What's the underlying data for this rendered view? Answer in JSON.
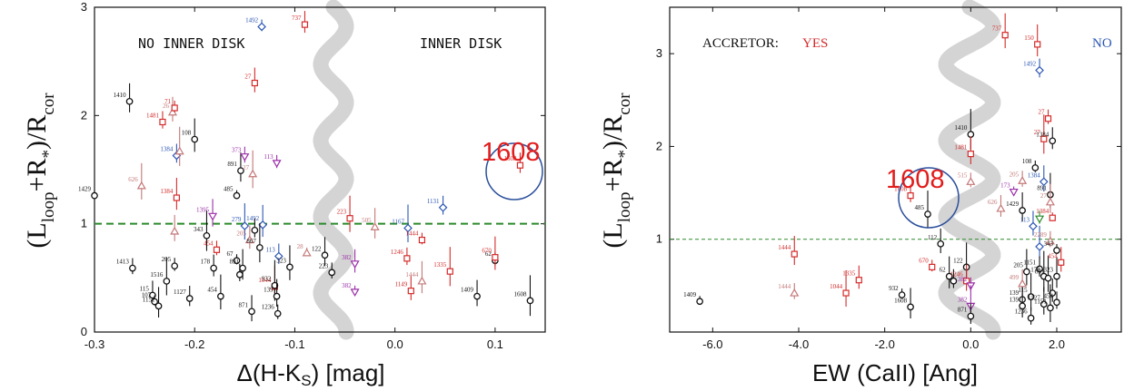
{
  "colors": {
    "black": "#111111",
    "red": "#d42a2a",
    "blue": "#2d57b4",
    "purple": "#9b2fa8",
    "salmon": "#c47878",
    "gray_band": "#d4d4d4",
    "green_line": "#2b8a2b",
    "highlight": "#e21c1c",
    "circle": "#2a4f9c"
  },
  "chart_data": [
    {
      "type": "scatter",
      "xlabel": "Δ(H-Ks) [mag]",
      "ylabel": "(Lloop+R*)/Rcor",
      "xlim": [
        -0.3,
        0.15
      ],
      "ylim": [
        0,
        3
      ],
      "xticks": [
        "-0.3",
        "-0.2",
        "-0.1",
        "0.0",
        "0.1"
      ],
      "yticks": [
        "0",
        "1",
        "2",
        "3"
      ],
      "reference_line_y": 1.0,
      "annotations": [
        "NO INNER DISK",
        "INNER DISK"
      ],
      "highlight": {
        "label": "1608",
        "x": 0.125,
        "y": 1.54
      },
      "points": [
        {
          "x": -0.3,
          "y": 1.26,
          "label": "1429",
          "c": "black",
          "m": "o"
        },
        {
          "x": -0.265,
          "y": 2.13,
          "label": "1410",
          "c": "black",
          "m": "o"
        },
        {
          "x": -0.262,
          "y": 0.59,
          "label": "1413",
          "c": "black",
          "m": "o"
        },
        {
          "x": -0.253,
          "y": 1.35,
          "label": "626",
          "c": "salmon",
          "m": "^"
        },
        {
          "x": -0.242,
          "y": 0.34,
          "label": "115",
          "c": "black",
          "m": "o"
        },
        {
          "x": -0.24,
          "y": 0.28,
          "label": "107",
          "c": "black",
          "m": "o"
        },
        {
          "x": -0.236,
          "y": 0.24,
          "label": "1151",
          "c": "black",
          "m": "o"
        },
        {
          "x": -0.232,
          "y": 1.94,
          "label": "1481",
          "c": "red",
          "m": "s"
        },
        {
          "x": -0.228,
          "y": 0.47,
          "label": "1516",
          "c": "black",
          "m": "o"
        },
        {
          "x": -0.222,
          "y": 2.03,
          "label": "26",
          "c": "salmon",
          "m": "^"
        },
        {
          "x": -0.22,
          "y": 2.07,
          "label": "71",
          "c": "red",
          "m": "s"
        },
        {
          "x": -0.218,
          "y": 1.24,
          "label": "1384",
          "c": "red",
          "m": "s"
        },
        {
          "x": -0.218,
          "y": 1.63,
          "label": "1384",
          "c": "blue",
          "m": "d"
        },
        {
          "x": -0.215,
          "y": 1.67,
          "label": "",
          "c": "salmon",
          "m": "^"
        },
        {
          "x": -0.22,
          "y": 0.93,
          "label": "",
          "c": "salmon",
          "m": "^"
        },
        {
          "x": -0.22,
          "y": 0.61,
          "label": "205",
          "c": "black",
          "m": "o"
        },
        {
          "x": -0.2,
          "y": 1.78,
          "label": "108",
          "c": "black",
          "m": "o"
        },
        {
          "x": -0.205,
          "y": 0.31,
          "label": "1127",
          "c": "black",
          "m": "o"
        },
        {
          "x": -0.188,
          "y": 0.89,
          "label": "343",
          "c": "black",
          "m": "o"
        },
        {
          "x": -0.182,
          "y": 1.07,
          "label": "1395",
          "c": "purple",
          "m": "v"
        },
        {
          "x": -0.178,
          "y": 0.76,
          "label": "454",
          "c": "red",
          "m": "s"
        },
        {
          "x": -0.174,
          "y": 0.33,
          "label": "454",
          "c": "black",
          "m": "o"
        },
        {
          "x": -0.181,
          "y": 0.59,
          "label": "178",
          "c": "black",
          "m": "o"
        },
        {
          "x": -0.158,
          "y": 1.26,
          "label": "485",
          "c": "black",
          "m": "o"
        },
        {
          "x": -0.154,
          "y": 1.49,
          "label": "891",
          "c": "black",
          "m": "o"
        },
        {
          "x": -0.15,
          "y": 1.62,
          "label": "373",
          "c": "purple",
          "m": "v"
        },
        {
          "x": -0.15,
          "y": 0.98,
          "label": "279",
          "c": "blue",
          "m": "d"
        },
        {
          "x": -0.145,
          "y": 0.85,
          "label": "205",
          "c": "salmon",
          "m": "^"
        },
        {
          "x": -0.158,
          "y": 0.66,
          "label": "67",
          "c": "black",
          "m": "o"
        },
        {
          "x": -0.152,
          "y": 0.59,
          "label": "891",
          "c": "black",
          "m": "o"
        },
        {
          "x": -0.155,
          "y": 0.53,
          "label": "",
          "c": "black",
          "m": "o"
        },
        {
          "x": -0.142,
          "y": 1.46,
          "label": "27",
          "c": "salmon",
          "m": "^"
        },
        {
          "x": -0.14,
          "y": 2.3,
          "label": "27",
          "c": "red",
          "m": "s"
        },
        {
          "x": -0.133,
          "y": 2.82,
          "label": "1492",
          "c": "blue",
          "m": "d"
        },
        {
          "x": -0.132,
          "y": 0.99,
          "label": "1492",
          "c": "blue",
          "m": "d"
        },
        {
          "x": -0.14,
          "y": 0.94,
          "label": "",
          "c": "black",
          "m": "o"
        },
        {
          "x": -0.135,
          "y": 0.78,
          "label": "867",
          "c": "black",
          "m": "o"
        },
        {
          "x": -0.143,
          "y": 0.19,
          "label": "871",
          "c": "black",
          "m": "o"
        },
        {
          "x": -0.118,
          "y": 1.56,
          "label": "113",
          "c": "purple",
          "m": "v"
        },
        {
          "x": -0.12,
          "y": 0.42,
          "label": "1044",
          "c": "red",
          "m": "s"
        },
        {
          "x": -0.116,
          "y": 0.7,
          "label": "113",
          "c": "blue",
          "m": "d"
        },
        {
          "x": -0.12,
          "y": 0.43,
          "label": "932",
          "c": "black",
          "m": "o"
        },
        {
          "x": -0.118,
          "y": 0.33,
          "label": "139",
          "c": "black",
          "m": "o"
        },
        {
          "x": -0.117,
          "y": 0.17,
          "label": "1236",
          "c": "black",
          "m": "o"
        },
        {
          "x": -0.105,
          "y": 0.6,
          "label": "323",
          "c": "black",
          "m": "o"
        },
        {
          "x": -0.09,
          "y": 2.84,
          "label": "737",
          "c": "red",
          "m": "s"
        },
        {
          "x": -0.088,
          "y": 0.73,
          "label": "28",
          "c": "salmon",
          "m": "^"
        },
        {
          "x": -0.07,
          "y": 0.71,
          "label": "122",
          "c": "black",
          "m": "o"
        },
        {
          "x": -0.063,
          "y": 0.55,
          "label": "223",
          "c": "black",
          "m": "o"
        },
        {
          "x": -0.045,
          "y": 1.05,
          "label": "223",
          "c": "red",
          "m": "s"
        },
        {
          "x": -0.04,
          "y": 0.63,
          "label": "382",
          "c": "purple",
          "m": "v"
        },
        {
          "x": -0.04,
          "y": 0.37,
          "label": "382",
          "c": "purple",
          "m": "v"
        },
        {
          "x": -0.02,
          "y": 0.97,
          "label": "505",
          "c": "salmon",
          "m": "^"
        },
        {
          "x": 0.012,
          "y": 0.68,
          "label": "1246",
          "c": "red",
          "m": "s"
        },
        {
          "x": 0.013,
          "y": 0.96,
          "label": "1167",
          "c": "blue",
          "m": "d"
        },
        {
          "x": 0.016,
          "y": 0.38,
          "label": "1149",
          "c": "red",
          "m": "s"
        },
        {
          "x": 0.027,
          "y": 0.85,
          "label": "1444",
          "c": "red",
          "m": "s"
        },
        {
          "x": 0.027,
          "y": 0.47,
          "label": "1444",
          "c": "salmon",
          "m": "^"
        },
        {
          "x": 0.048,
          "y": 1.15,
          "label": "1131",
          "c": "blue",
          "m": "d"
        },
        {
          "x": 0.055,
          "y": 0.56,
          "label": "1335",
          "c": "red",
          "m": "s"
        },
        {
          "x": 0.082,
          "y": 0.33,
          "label": "1409",
          "c": "black",
          "m": "o"
        },
        {
          "x": 0.1,
          "y": 0.66,
          "label": "62",
          "c": "black",
          "m": "o"
        },
        {
          "x": 0.1,
          "y": 0.69,
          "label": "670",
          "c": "red",
          "m": "s"
        },
        {
          "x": 0.125,
          "y": 1.54,
          "label": "1608",
          "c": "red",
          "m": "s"
        },
        {
          "x": 0.135,
          "y": 0.29,
          "label": "1608",
          "c": "black",
          "m": "o"
        }
      ]
    },
    {
      "type": "scatter",
      "xlabel": "EW (CaII) [Ang]",
      "ylabel": "(Lloop+R*)/Rcor",
      "xlim": [
        -7,
        3.5
      ],
      "ylim": [
        0,
        3.5
      ],
      "xticks": [
        "-6.0",
        "-4.0",
        "-2.0",
        "0.0",
        "2.0"
      ],
      "yticks": [
        "1",
        "2",
        "3"
      ],
      "reference_line_y": 1.0,
      "annotations": [
        "ACCRETOR:",
        "YES",
        "NO"
      ],
      "highlight": {
        "label": "1608",
        "x": -1.4,
        "y": 1.47
      },
      "points": [
        {
          "x": -6.3,
          "y": 0.33,
          "label": "1409",
          "c": "black",
          "m": "o"
        },
        {
          "x": -4.1,
          "y": 0.84,
          "label": "1444",
          "c": "red",
          "m": "s"
        },
        {
          "x": -4.1,
          "y": 0.42,
          "label": "1444",
          "c": "salmon",
          "m": "^"
        },
        {
          "x": -2.9,
          "y": 0.42,
          "label": "1044",
          "c": "red",
          "m": "s"
        },
        {
          "x": -2.6,
          "y": 0.56,
          "label": "1335",
          "c": "red",
          "m": "s"
        },
        {
          "x": -1.6,
          "y": 0.4,
          "label": "932",
          "c": "black",
          "m": "o"
        },
        {
          "x": -1.4,
          "y": 0.27,
          "label": "1608",
          "c": "black",
          "m": "o"
        },
        {
          "x": -1.4,
          "y": 1.47,
          "label": "1608",
          "c": "red",
          "m": "s"
        },
        {
          "x": -1.0,
          "y": 1.27,
          "label": "485",
          "c": "black",
          "m": "o"
        },
        {
          "x": -0.7,
          "y": 0.95,
          "label": "112",
          "c": "black",
          "m": "o"
        },
        {
          "x": -0.9,
          "y": 0.7,
          "label": "670",
          "c": "red",
          "m": "s"
        },
        {
          "x": -0.5,
          "y": 0.6,
          "label": "62",
          "c": "black",
          "m": "o"
        },
        {
          "x": -0.4,
          "y": 0.55,
          "label": "",
          "c": "black",
          "m": "o"
        },
        {
          "x": -0.1,
          "y": 0.7,
          "label": "122",
          "c": "black",
          "m": "o"
        },
        {
          "x": -0.1,
          "y": 0.55,
          "label": "1246",
          "c": "red",
          "m": "s"
        },
        {
          "x": 0.0,
          "y": 0.5,
          "label": "382",
          "c": "purple",
          "m": "v"
        },
        {
          "x": 0.0,
          "y": 0.28,
          "label": "382",
          "c": "purple",
          "m": "v"
        },
        {
          "x": 0.0,
          "y": 0.17,
          "label": "871",
          "c": "black",
          "m": "o"
        },
        {
          "x": 0.0,
          "y": 2.13,
          "label": "1410",
          "c": "black",
          "m": "o"
        },
        {
          "x": 0.0,
          "y": 1.92,
          "label": "1481",
          "c": "red",
          "m": "s"
        },
        {
          "x": 0.0,
          "y": 1.62,
          "label": "515",
          "c": "salmon",
          "m": "^"
        },
        {
          "x": 0.8,
          "y": 3.2,
          "label": "737",
          "c": "red",
          "m": "s"
        },
        {
          "x": 0.7,
          "y": 1.33,
          "label": "626",
          "c": "salmon",
          "m": "^"
        },
        {
          "x": 1.0,
          "y": 1.51,
          "label": "173",
          "c": "purple",
          "m": "v"
        },
        {
          "x": 1.2,
          "y": 1.31,
          "label": "1429",
          "c": "black",
          "m": "o"
        },
        {
          "x": 1.2,
          "y": 1.63,
          "label": "205",
          "c": "salmon",
          "m": "^"
        },
        {
          "x": 1.3,
          "y": 0.65,
          "label": "205",
          "c": "black",
          "m": "o"
        },
        {
          "x": 1.2,
          "y": 0.52,
          "label": "499",
          "c": "salmon",
          "m": "^"
        },
        {
          "x": 1.2,
          "y": 0.35,
          "label": "139",
          "c": "black",
          "m": "o"
        },
        {
          "x": 1.2,
          "y": 0.28,
          "label": "139",
          "c": "black",
          "m": "o"
        },
        {
          "x": 1.4,
          "y": 0.15,
          "label": "1236",
          "c": "black",
          "m": "o"
        },
        {
          "x": 1.4,
          "y": 0.38,
          "label": "115",
          "c": "black",
          "m": "o"
        },
        {
          "x": 1.45,
          "y": 1.14,
          "label": "113",
          "c": "blue",
          "m": "d"
        },
        {
          "x": 1.5,
          "y": 1.77,
          "label": "108",
          "c": "black",
          "m": "o"
        },
        {
          "x": 1.55,
          "y": 3.1,
          "label": "150",
          "c": "red",
          "m": "s"
        },
        {
          "x": 1.6,
          "y": 2.82,
          "label": "1492",
          "c": "blue",
          "m": "d"
        },
        {
          "x": 1.7,
          "y": 2.08,
          "label": "27",
          "c": "red",
          "m": "s"
        },
        {
          "x": 1.7,
          "y": 1.62,
          "label": "1384",
          "c": "blue",
          "m": "d"
        },
        {
          "x": 1.6,
          "y": 1.22,
          "label": "",
          "c": "green",
          "m": "v"
        },
        {
          "x": 1.6,
          "y": 0.92,
          "label": "",
          "c": "blue",
          "m": "d"
        },
        {
          "x": 1.6,
          "y": 0.68,
          "label": "1151",
          "c": "black",
          "m": "o"
        },
        {
          "x": 1.7,
          "y": 0.6,
          "label": "178",
          "c": "black",
          "m": "o"
        },
        {
          "x": 1.7,
          "y": 0.3,
          "label": "1127",
          "c": "black",
          "m": "o"
        },
        {
          "x": 1.8,
          "y": 2.3,
          "label": "27",
          "c": "red",
          "m": "s"
        },
        {
          "x": 1.85,
          "y": 1.48,
          "label": "891",
          "c": "black",
          "m": "o"
        },
        {
          "x": 1.9,
          "y": 2.06,
          "label": "1384",
          "c": "black",
          "m": "o"
        },
        {
          "x": 1.9,
          "y": 1.23,
          "label": "1384",
          "c": "red",
          "m": "s"
        },
        {
          "x": 1.85,
          "y": 1.4,
          "label": "27",
          "c": "salmon",
          "m": "^"
        },
        {
          "x": 1.85,
          "y": 0.98,
          "label": "2289",
          "c": "salmon",
          "m": "^"
        },
        {
          "x": 1.8,
          "y": 0.58,
          "label": "891",
          "c": "black",
          "m": "o"
        },
        {
          "x": 1.9,
          "y": 0.42,
          "label": "",
          "c": "black",
          "m": "o"
        },
        {
          "x": 2.0,
          "y": 0.88,
          "label": "343",
          "c": "black",
          "m": "o"
        },
        {
          "x": 2.0,
          "y": 0.6,
          "label": "323",
          "c": "black",
          "m": "o"
        },
        {
          "x": 2.0,
          "y": 0.32,
          "label": "454",
          "c": "black",
          "m": "o"
        },
        {
          "x": 1.85,
          "y": 0.26,
          "label": "1151",
          "c": "black",
          "m": "o"
        },
        {
          "x": 2.1,
          "y": 0.75,
          "label": "454",
          "c": "red",
          "m": "s"
        }
      ]
    }
  ],
  "panels": [
    {
      "xlabel_html": "Δ(H-K<tspan dy='5' font-size='17'>S</tspan><tspan dy='-5'>) [mag]</tspan>",
      "left_text": "NO INNER DISK",
      "right_text": "INNER DISK",
      "big_label": "1608"
    },
    {
      "xlabel_text": "EW (CaII) [Ang]",
      "accretor": "ACCRETOR:",
      "yes": "YES",
      "no": "NO",
      "big_label": "1608"
    }
  ]
}
